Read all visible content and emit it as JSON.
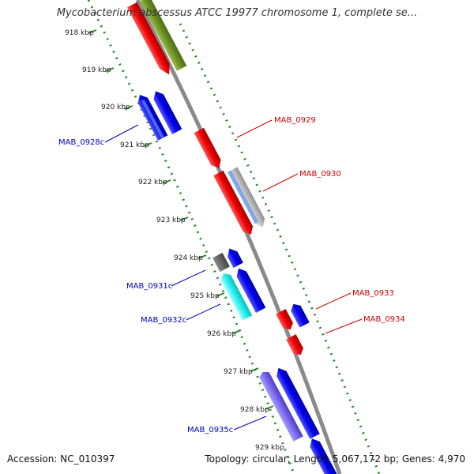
{
  "title": "Mycobacterium abscessus ATCC 19977 chromosome 1, complete se...",
  "footer": {
    "accession": "Accession: NC_010397",
    "stats": "Topology: circular; Length: 5,067,172 bp; Genes: 4,970"
  },
  "ticks": [
    "918 kbp",
    "919 kbp",
    "920 kbp",
    "921 kbp",
    "922 kbp",
    "923 kbp",
    "924 kbp",
    "925 kbp",
    "926 kbp",
    "927 kbp",
    "928 kbp",
    "929 kbp"
  ],
  "genes": {
    "forward": [
      "MAB_0929",
      "MAB_0930",
      "MAB_0933",
      "MAB_0934"
    ],
    "reverse": [
      "MAB_0928c",
      "MAB_0931c",
      "MAB_0932c",
      "MAB_0935c"
    ]
  },
  "colors": {
    "forward_label": "#cc0000",
    "reverse_label": "#0000bb",
    "backbone": "#8a8a8a",
    "dots": "#2a8a2a",
    "red_feature": "#ee1111",
    "blue_feature": "#1010dd",
    "olive_feature": "#6b8e23",
    "cyan_feature": "#22eeee",
    "purple_feature": "#7b68ee",
    "gray_feature": "#5a5a5a",
    "lightblue_feature": "#6495ed",
    "silver_feature": "#c0c0c0"
  }
}
